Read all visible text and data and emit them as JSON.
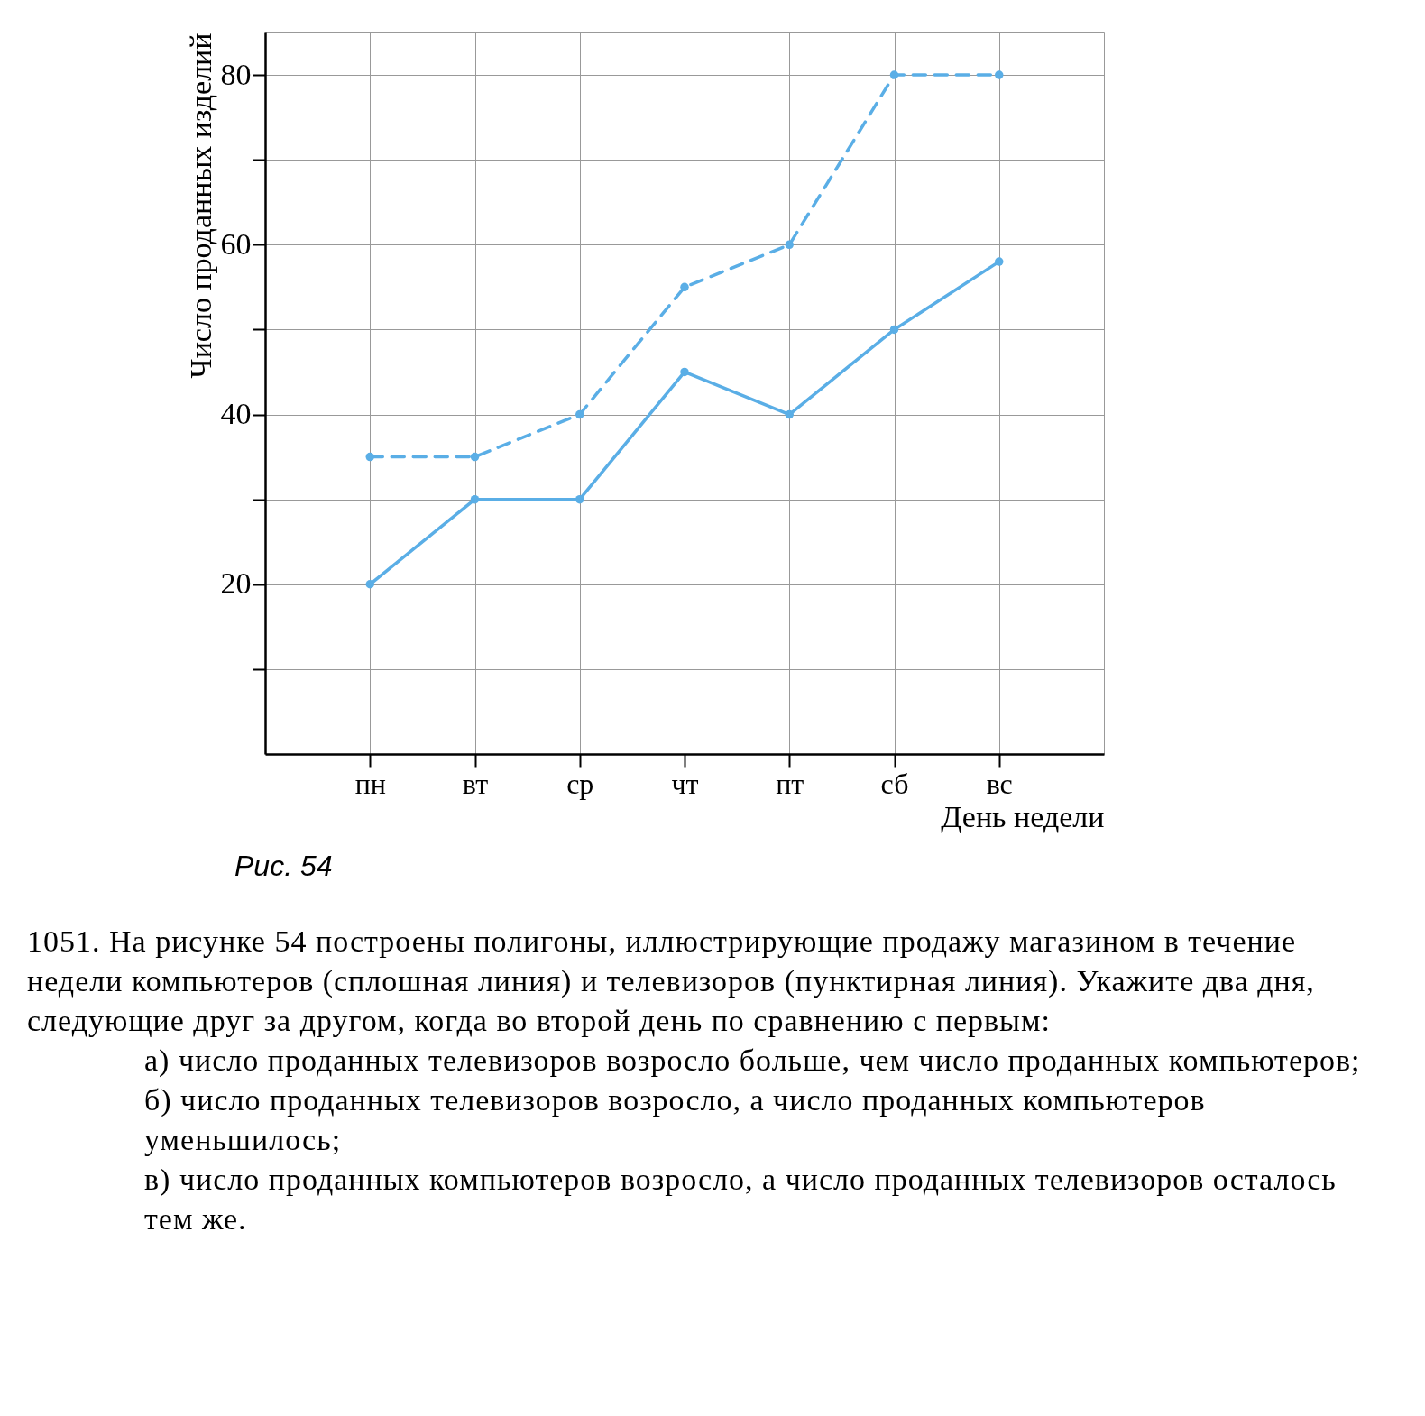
{
  "chart_data": {
    "type": "line",
    "xlabel": "День недели",
    "ylabel": "Число проданных изделий",
    "categories": [
      "пн",
      "вт",
      "ср",
      "чт",
      "пт",
      "сб",
      "вс"
    ],
    "series": [
      {
        "color": "#5aaee6",
        "line_style": "solid",
        "values": [
          20,
          30,
          30,
          45,
          40,
          50,
          58
        ]
      },
      {
        "color": "#5aaee6",
        "line_style": "dashed",
        "values": [
          35,
          35,
          40,
          55,
          60,
          80,
          80
        ]
      }
    ],
    "ylim": [
      0,
      85
    ],
    "yticks": [
      {
        "value": 10,
        "label": null
      },
      20,
      {
        "value": 30,
        "label": null
      },
      40,
      {
        "value": 50,
        "label": null
      },
      60,
      {
        "value": 70,
        "label": null
      },
      80
    ],
    "grid": true,
    "marker": "circle",
    "annotations": [
      "Рис. 54",
      "1051. На рисунке 54 построены полигоны, иллюстрирующие продажу магазином в течение недели компьютеров (сплошная линия) и телевизоров (пунктирная линия). Укажите два дня, следующие друг за другом, когда во второй день по сравнению с первым:",
      "а) число проданных телевизоров возросло больше, чем число проданных компьютеров;",
      "б) число проданных телевизоров возросло, а число проданных компьютеров уменьшилось;",
      "в) число проданных компьютеров возросло, а число проданных телевизоров осталось тем же."
    ]
  }
}
